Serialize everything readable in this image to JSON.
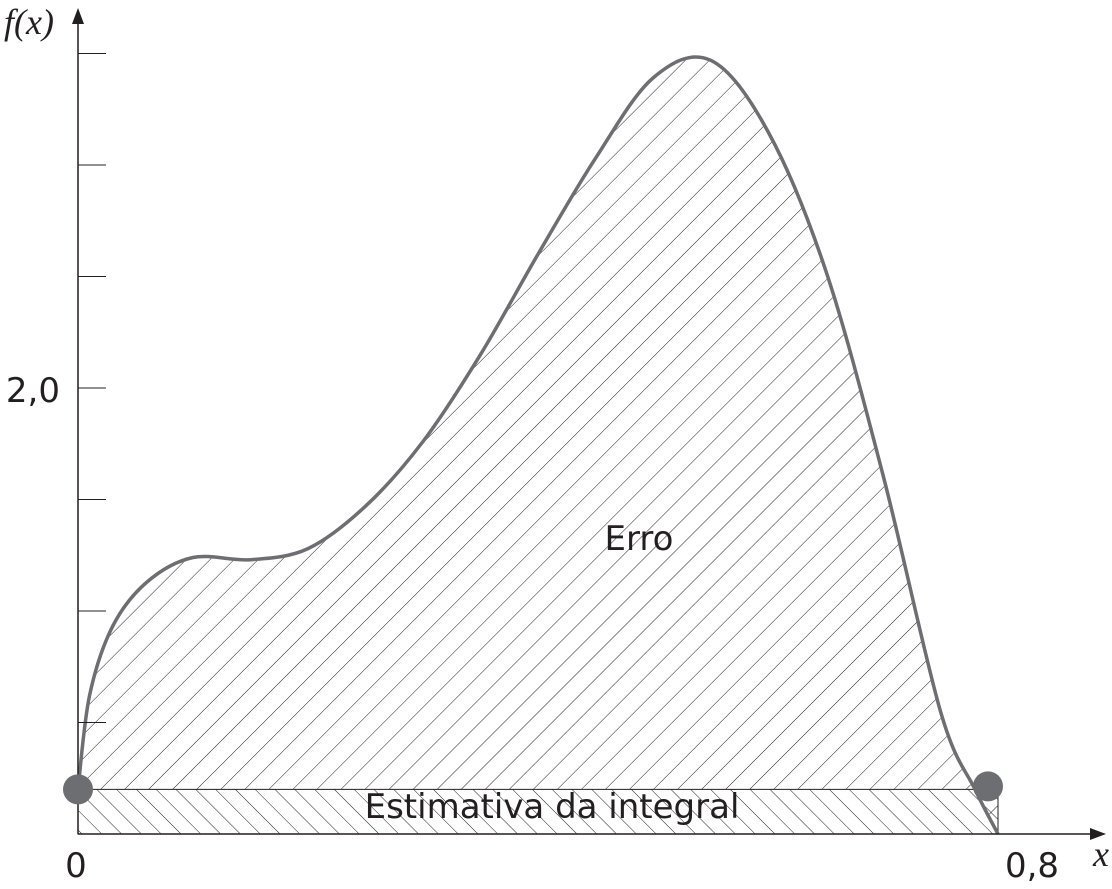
{
  "chart_data": {
    "type": "area",
    "title": "",
    "xlabel": "x",
    "ylabel": "f(x)",
    "x_ticks": [
      "0",
      "0,8"
    ],
    "y_ticks": [
      "2,0"
    ],
    "xlim": [
      0,
      0.8
    ],
    "ylim": [
      0,
      3.5
    ],
    "y_minor_tick_step": 0.5,
    "grid": false,
    "legend": "none",
    "curve": {
      "x": [
        0.0,
        0.01,
        0.03,
        0.06,
        0.1,
        0.15,
        0.2,
        0.25,
        0.3,
        0.35,
        0.4,
        0.45,
        0.5,
        0.55,
        0.6,
        0.65,
        0.7,
        0.75,
        0.78,
        0.8
      ],
      "y": [
        0.2,
        0.62,
        0.93,
        1.13,
        1.24,
        1.23,
        1.28,
        1.47,
        1.76,
        2.15,
        2.6,
        3.03,
        3.39,
        3.47,
        3.15,
        2.53,
        1.61,
        0.55,
        0.2,
        0.0
      ]
    },
    "trapezoid": {
      "x": [
        0.0,
        0.8
      ],
      "y": [
        0.2,
        0.2
      ]
    },
    "annotations": {
      "error_region": "Erro",
      "estimate_region": "Estimativa da integral"
    },
    "colors": {
      "curve": "#6d6e71",
      "points": "#6d6e71",
      "axis": "#231f20",
      "hatch": "#231f20"
    }
  }
}
